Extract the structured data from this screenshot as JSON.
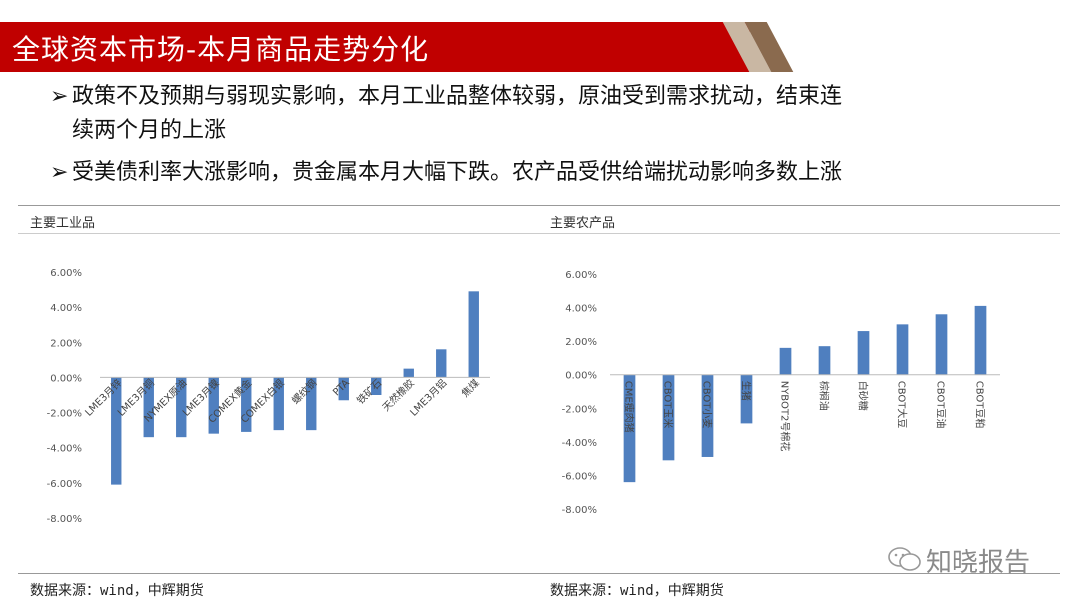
{
  "title": "全球资本市场-本月商品走势分化",
  "bullets": {
    "marker": "➢",
    "b1_line1": "政策不及预期与弱现实影响，本月工业品整体较弱，原油受到需求扰动，结束连",
    "b1_line2": "续两个月的上涨",
    "b2": "受美债利率大涨影响，贵金属本月大幅下跌。农产品受供给端扰动影响多数上涨"
  },
  "left_panel": {
    "title": "主要工业品",
    "source": "数据来源：wind，中辉期货"
  },
  "right_panel": {
    "title": "主要农产品",
    "source": "数据来源：wind，中辉期货"
  },
  "watermark": "知晓报告",
  "colors": {
    "bar": "#4f7fbf",
    "title_bg": "#c00000"
  },
  "chart_data": [
    {
      "type": "bar",
      "title": "主要工业品",
      "categories": [
        "LME3月锌",
        "LME3月铜",
        "NYMEX原油",
        "LME3月镍",
        "COMEX黄金",
        "COMEX白银",
        "螺纹钢",
        "PTA",
        "铁矿石",
        "天然橡胶",
        "LME3月铝",
        "焦煤"
      ],
      "values": [
        -6.1,
        -3.4,
        -3.4,
        -3.2,
        -3.1,
        -3.0,
        -3.0,
        -1.3,
        -1.0,
        0.5,
        1.6,
        4.9
      ],
      "ylim": [
        -8,
        6
      ],
      "yticks": [
        "6.00%",
        "4.00%",
        "2.00%",
        "0.00%",
        "-2.00%",
        "-4.00%",
        "-6.00%",
        "-8.00%"
      ],
      "tick_values": [
        6,
        4,
        2,
        0,
        -2,
        -4,
        -6,
        -8
      ]
    },
    {
      "type": "bar",
      "title": "主要农产品",
      "categories": [
        "CME瘦肉猪",
        "CBOT玉米",
        "CBOT小麦",
        "生猪",
        "NYBOT2号棉花",
        "棕榈油",
        "白砂糖",
        "CBOT大豆",
        "CBOT豆油",
        "CBOT豆粕"
      ],
      "values": [
        -6.4,
        -5.1,
        -4.9,
        -2.9,
        1.6,
        1.7,
        2.6,
        3.0,
        3.6,
        4.1
      ],
      "ylim": [
        -8,
        6
      ],
      "yticks": [
        "6.00%",
        "4.00%",
        "2.00%",
        "0.00%",
        "-2.00%",
        "-4.00%",
        "-6.00%",
        "-8.00%"
      ],
      "tick_values": [
        6,
        4,
        2,
        0,
        -2,
        -4,
        -6,
        -8
      ]
    }
  ]
}
